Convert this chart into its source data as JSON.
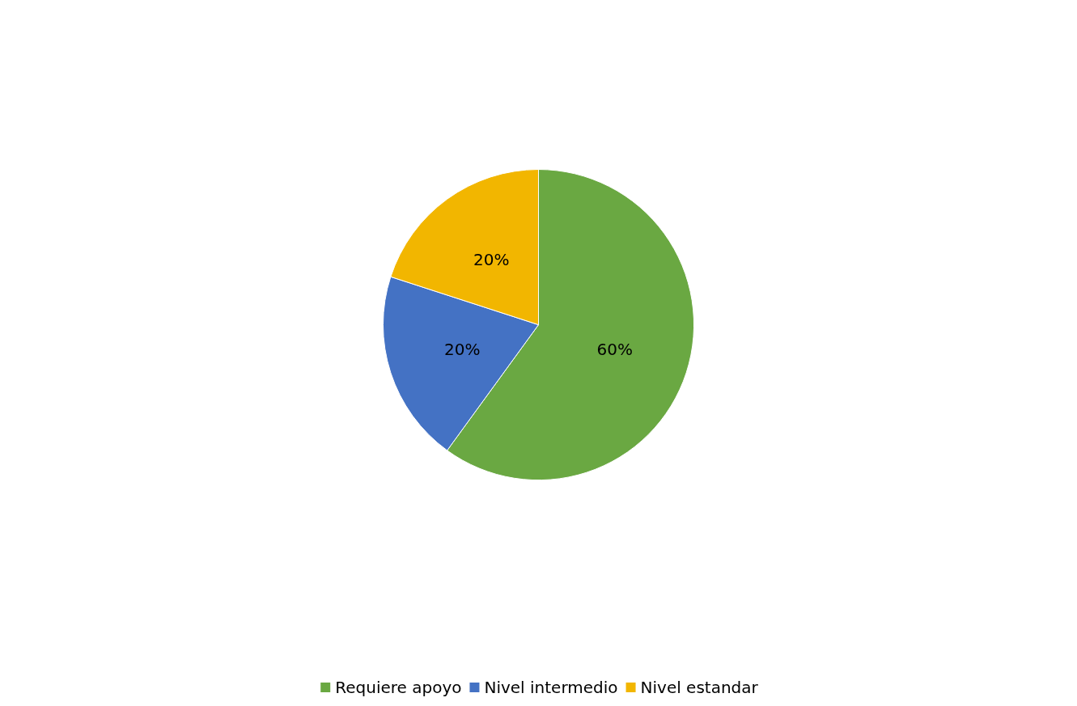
{
  "chart_data": {
    "type": "pie",
    "categories": [
      "Requiere apoyo",
      "Nivel intermedio",
      "Nivel estandar"
    ],
    "values": [
      60,
      20,
      20
    ],
    "value_labels": [
      "60%",
      "20%",
      "20%"
    ],
    "colors": [
      "#6aa842",
      "#4472c4",
      "#f2b600"
    ],
    "legend": "bottom"
  }
}
